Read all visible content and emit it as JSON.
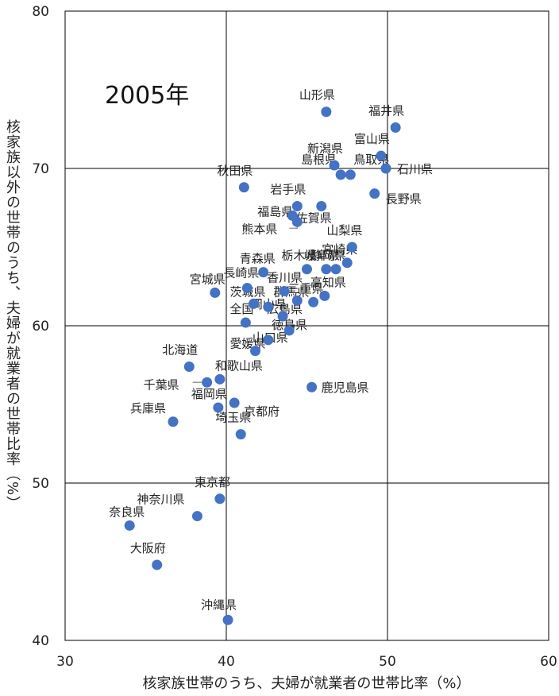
{
  "chart_data": {
    "type": "scatter",
    "annotation": "2005年",
    "xlabel": "核家族世帯のうち、夫婦が就業者の世帯比率（%）",
    "ylabel": "核家族以外の世帯のうち、夫婦が就業者の世帯比率（%）",
    "xlim": [
      30,
      60
    ],
    "ylim": [
      40,
      80
    ],
    "x_ticks": [
      "30",
      "40",
      "50",
      "60"
    ],
    "y_ticks": [
      "40",
      "50",
      "60",
      "70",
      "80"
    ],
    "grid": true,
    "point_color": "#4472c4",
    "points": [
      {
        "label": "山形県",
        "x": 46.2,
        "y": 73.6
      },
      {
        "label": "福井県",
        "x": 50.5,
        "y": 72.6
      },
      {
        "label": "富山県",
        "x": 49.6,
        "y": 70.8
      },
      {
        "label": "新潟県",
        "x": 46.7,
        "y": 70.2
      },
      {
        "label": "石川県",
        "x": 49.9,
        "y": 70.0
      },
      {
        "label": "島根県",
        "x": 47.1,
        "y": 69.6
      },
      {
        "label": "鳥取県",
        "x": 47.7,
        "y": 69.6
      },
      {
        "label": "秋田県",
        "x": 41.1,
        "y": 68.8
      },
      {
        "label": "長野県",
        "x": 49.2,
        "y": 68.4
      },
      {
        "label": "岩手県",
        "x": 44.4,
        "y": 67.6
      },
      {
        "label": "佐賀県",
        "x": 45.9,
        "y": 67.6
      },
      {
        "label": "福島県",
        "x": 44.1,
        "y": 67.0
      },
      {
        "label": "熊本県",
        "x": 44.4,
        "y": 66.6
      },
      {
        "label": "山梨県",
        "x": 47.8,
        "y": 65.0
      },
      {
        "label": "宮崎県",
        "x": 47.5,
        "y": 64.0
      },
      {
        "label": "青森県",
        "x": 42.3,
        "y": 63.4
      },
      {
        "label": "栃木県",
        "x": 45.0,
        "y": 63.6
      },
      {
        "label": "岐阜県",
        "x": 46.2,
        "y": 63.6
      },
      {
        "label": "静岡県",
        "x": 46.8,
        "y": 63.6
      },
      {
        "label": "長崎県",
        "x": 41.3,
        "y": 62.4
      },
      {
        "label": "香川県",
        "x": 43.6,
        "y": 62.2
      },
      {
        "label": "群馬県",
        "x": 44.4,
        "y": 61.6
      },
      {
        "label": "高知県",
        "x": 46.1,
        "y": 61.9
      },
      {
        "label": "宮城県",
        "x": 39.3,
        "y": 62.1
      },
      {
        "label": "茨城県",
        "x": 41.7,
        "y": 61.4
      },
      {
        "label": "岡山県",
        "x": 42.6,
        "y": 61.2
      },
      {
        "label": "三重県",
        "x": 45.4,
        "y": 61.5
      },
      {
        "label": "全国",
        "x": 41.2,
        "y": 60.2
      },
      {
        "label": "広島県",
        "x": 43.5,
        "y": 60.6
      },
      {
        "label": "山口県",
        "x": 42.6,
        "y": 59.1
      },
      {
        "label": "徳島県",
        "x": 43.9,
        "y": 59.7
      },
      {
        "label": "愛媛県",
        "x": 41.8,
        "y": 58.4
      },
      {
        "label": "北海道",
        "x": 37.7,
        "y": 57.4
      },
      {
        "label": "和歌山県",
        "x": 39.6,
        "y": 56.6
      },
      {
        "label": "千葉県",
        "x": 38.8,
        "y": 56.4
      },
      {
        "label": "鹿児島県",
        "x": 45.3,
        "y": 56.1
      },
      {
        "label": "福岡県",
        "x": 39.5,
        "y": 54.8
      },
      {
        "label": "京都府",
        "x": 40.5,
        "y": 55.1
      },
      {
        "label": "兵庫県",
        "x": 36.7,
        "y": 53.9
      },
      {
        "label": "埼玉県",
        "x": 40.9,
        "y": 53.1
      },
      {
        "label": "東京都",
        "x": 39.6,
        "y": 49.0
      },
      {
        "label": "神奈川県",
        "x": 38.2,
        "y": 47.9
      },
      {
        "label": "奈良県",
        "x": 34.0,
        "y": 47.3
      },
      {
        "label": "大阪府",
        "x": 35.7,
        "y": 44.8
      },
      {
        "label": "沖縄県",
        "x": 40.1,
        "y": 41.3
      }
    ]
  }
}
